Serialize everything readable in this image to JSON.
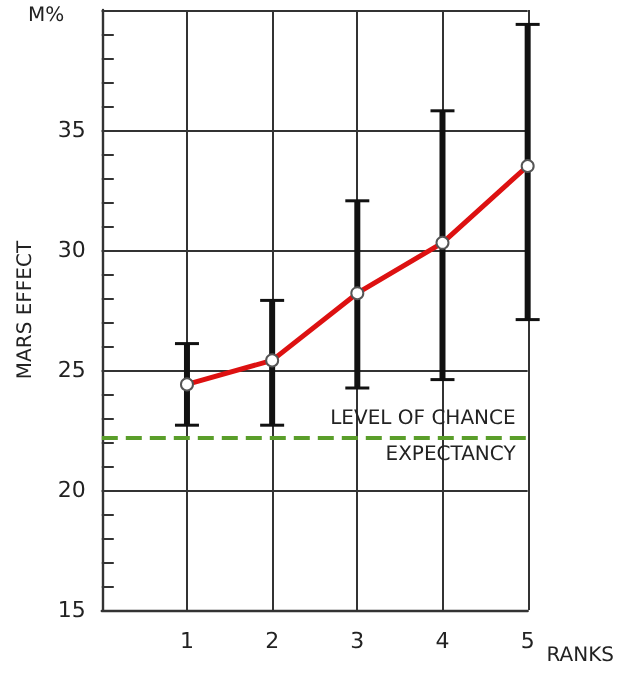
{
  "chart_data": {
    "type": "line",
    "xlabel": "RANKS",
    "ylabel": "MARS EFFECT",
    "annotations": [
      "M%"
    ],
    "x": [
      1,
      2,
      3,
      4,
      5
    ],
    "series": [
      {
        "color": "#dd1111",
        "values": [
          24.4,
          25.4,
          28.2,
          30.3,
          33.5
        ],
        "errors": [
          [
            22.7,
            26.1
          ],
          [
            22.7,
            27.9
          ],
          [
            24.25,
            32.05
          ],
          [
            24.6,
            35.8
          ],
          [
            27.1,
            39.4
          ]
        ]
      }
    ],
    "xlim": [
      0,
      5
    ],
    "xticks": [
      1,
      2,
      3,
      4,
      5
    ],
    "ylim": [
      15,
      40
    ],
    "yticks": [
      15,
      20,
      25,
      30,
      35,
      {
        "value": 40,
        "label": null
      }
    ],
    "ref_lines": [
      {
        "axis": "y",
        "value": 22.2,
        "label": "LEVEL OF CHANCE\nEXPECTANCY",
        "color": "#5a9e2a",
        "line_style": "dashed"
      }
    ],
    "grid": true,
    "marker": "circle",
    "line_style": "solid"
  }
}
